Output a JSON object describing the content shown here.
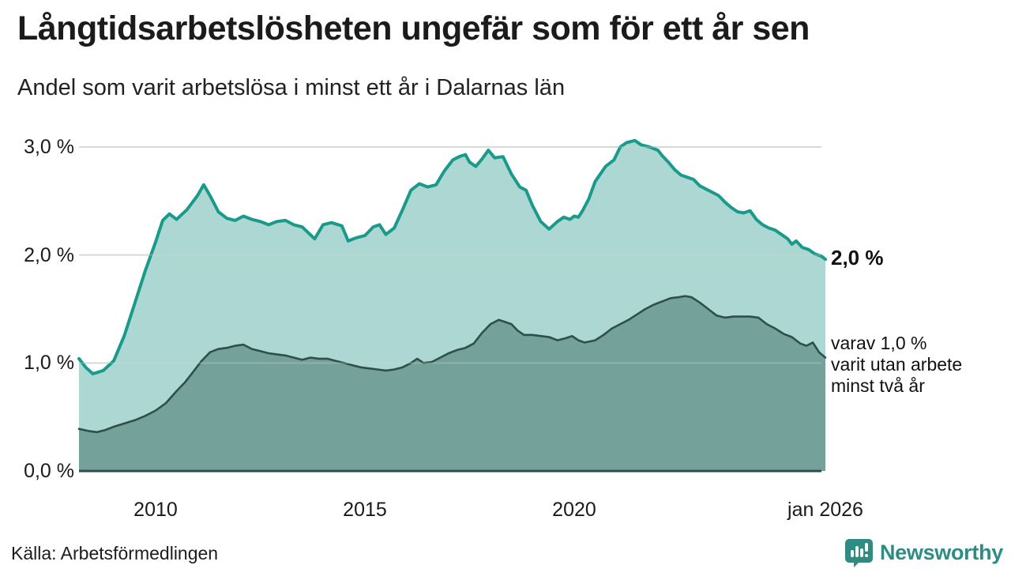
{
  "header": {
    "title": "Långtidsarbetslösheten ungefär som för ett år sen",
    "subtitle": "Andel som varit arbetslösa i minst ett år i Dalarnas län"
  },
  "annotations": {
    "total_end_label": "2,0 %",
    "secondary_label_lines": [
      "varav 1,0 %",
      "varit utan arbete",
      "minst två år"
    ]
  },
  "source": {
    "label": "Källa: Arbetsförmedlingen"
  },
  "branding": {
    "name": "Newsworthy",
    "icon": "bar-chart-pin-icon",
    "color": "#2e8c82"
  },
  "colors": {
    "total_line": "#1a9a8a",
    "total_fill": "#a9d5d0",
    "secondary_line": "#2e4f4a",
    "secondary_fill": "#6f9c95",
    "gridline": "#d9d9d9",
    "baseline": "#2e4f4a",
    "text": "#1a1a1a"
  },
  "chart_data": {
    "type": "area",
    "title": "Långtidsarbetslösheten ungefär som för ett år sen",
    "subtitle": "Andel som varit arbetslösa i minst ett år i Dalarnas län",
    "xlabel": "",
    "ylabel": "",
    "unit": "%",
    "xlim": [
      2008.17,
      2026.0
    ],
    "ylim": [
      0,
      3.2
    ],
    "grid": "horizontal",
    "legend_position": "right-edge-labels",
    "y_ticks": [
      {
        "v": 0,
        "label": "0,0 %"
      },
      {
        "v": 1,
        "label": "1,0 %"
      },
      {
        "v": 2,
        "label": "2,0 %"
      },
      {
        "v": 3,
        "label": "3,0 %"
      }
    ],
    "x_ticks": [
      {
        "x": 2010,
        "label": "2010"
      },
      {
        "x": 2015,
        "label": "2015"
      },
      {
        "x": 2020,
        "label": "2020"
      },
      {
        "x": 2026.0,
        "label": "jan 2026"
      }
    ],
    "series": [
      {
        "name": "Andel arbetslösa minst ett år",
        "end_value_label": "2,0 %",
        "line_color": "#1a9a8a",
        "fill_color": "#a9d5d0",
        "points": [
          [
            2008.17,
            1.04
          ],
          [
            2008.33,
            0.96
          ],
          [
            2008.5,
            0.9
          ],
          [
            2008.75,
            0.93
          ],
          [
            2009.0,
            1.02
          ],
          [
            2009.25,
            1.25
          ],
          [
            2009.5,
            1.55
          ],
          [
            2009.75,
            1.85
          ],
          [
            2010.0,
            2.12
          ],
          [
            2010.17,
            2.32
          ],
          [
            2010.33,
            2.38
          ],
          [
            2010.5,
            2.33
          ],
          [
            2010.75,
            2.42
          ],
          [
            2011.0,
            2.55
          ],
          [
            2011.15,
            2.65
          ],
          [
            2011.3,
            2.55
          ],
          [
            2011.5,
            2.4
          ],
          [
            2011.7,
            2.34
          ],
          [
            2011.9,
            2.32
          ],
          [
            2012.1,
            2.36
          ],
          [
            2012.3,
            2.33
          ],
          [
            2012.5,
            2.31
          ],
          [
            2012.7,
            2.28
          ],
          [
            2012.9,
            2.31
          ],
          [
            2013.1,
            2.32
          ],
          [
            2013.3,
            2.28
          ],
          [
            2013.5,
            2.26
          ],
          [
            2013.8,
            2.15
          ],
          [
            2014.0,
            2.28
          ],
          [
            2014.2,
            2.3
          ],
          [
            2014.45,
            2.27
          ],
          [
            2014.6,
            2.13
          ],
          [
            2014.8,
            2.16
          ],
          [
            2015.0,
            2.18
          ],
          [
            2015.2,
            2.26
          ],
          [
            2015.35,
            2.28
          ],
          [
            2015.5,
            2.19
          ],
          [
            2015.7,
            2.25
          ],
          [
            2015.9,
            2.42
          ],
          [
            2016.1,
            2.6
          ],
          [
            2016.3,
            2.66
          ],
          [
            2016.5,
            2.63
          ],
          [
            2016.7,
            2.65
          ],
          [
            2016.9,
            2.78
          ],
          [
            2017.1,
            2.88
          ],
          [
            2017.25,
            2.91
          ],
          [
            2017.4,
            2.93
          ],
          [
            2017.5,
            2.86
          ],
          [
            2017.65,
            2.82
          ],
          [
            2017.8,
            2.89
          ],
          [
            2017.95,
            2.97
          ],
          [
            2018.1,
            2.9
          ],
          [
            2018.3,
            2.91
          ],
          [
            2018.5,
            2.75
          ],
          [
            2018.7,
            2.63
          ],
          [
            2018.85,
            2.6
          ],
          [
            2019.0,
            2.46
          ],
          [
            2019.2,
            2.31
          ],
          [
            2019.4,
            2.24
          ],
          [
            2019.6,
            2.31
          ],
          [
            2019.75,
            2.35
          ],
          [
            2019.9,
            2.33
          ],
          [
            2020.0,
            2.36
          ],
          [
            2020.1,
            2.35
          ],
          [
            2020.2,
            2.41
          ],
          [
            2020.35,
            2.52
          ],
          [
            2020.5,
            2.68
          ],
          [
            2020.75,
            2.82
          ],
          [
            2020.95,
            2.88
          ],
          [
            2021.1,
            3.0
          ],
          [
            2021.25,
            3.04
          ],
          [
            2021.45,
            3.06
          ],
          [
            2021.6,
            3.02
          ],
          [
            2021.8,
            3.0
          ],
          [
            2022.0,
            2.97
          ],
          [
            2022.1,
            2.92
          ],
          [
            2022.25,
            2.86
          ],
          [
            2022.4,
            2.79
          ],
          [
            2022.55,
            2.74
          ],
          [
            2022.7,
            2.72
          ],
          [
            2022.85,
            2.7
          ],
          [
            2023.0,
            2.64
          ],
          [
            2023.15,
            2.61
          ],
          [
            2023.3,
            2.58
          ],
          [
            2023.45,
            2.55
          ],
          [
            2023.6,
            2.49
          ],
          [
            2023.75,
            2.44
          ],
          [
            2023.9,
            2.4
          ],
          [
            2024.05,
            2.39
          ],
          [
            2024.2,
            2.41
          ],
          [
            2024.35,
            2.33
          ],
          [
            2024.5,
            2.28
          ],
          [
            2024.65,
            2.25
          ],
          [
            2024.8,
            2.23
          ],
          [
            2024.95,
            2.19
          ],
          [
            2025.1,
            2.15
          ],
          [
            2025.2,
            2.1
          ],
          [
            2025.3,
            2.13
          ],
          [
            2025.45,
            2.07
          ],
          [
            2025.6,
            2.05
          ],
          [
            2025.75,
            2.01
          ],
          [
            2025.9,
            1.99
          ],
          [
            2026.0,
            1.96
          ]
        ]
      },
      {
        "name": "varav utan arbete minst två år",
        "end_value_label": "varav 1,0 % varit utan arbete minst två år",
        "line_color": "#2e4f4a",
        "fill_color": "#6f9c95",
        "points": [
          [
            2008.17,
            0.39
          ],
          [
            2008.4,
            0.37
          ],
          [
            2008.6,
            0.36
          ],
          [
            2008.8,
            0.38
          ],
          [
            2009.0,
            0.41
          ],
          [
            2009.25,
            0.44
          ],
          [
            2009.5,
            0.47
          ],
          [
            2009.75,
            0.51
          ],
          [
            2010.0,
            0.56
          ],
          [
            2010.25,
            0.63
          ],
          [
            2010.5,
            0.74
          ],
          [
            2010.7,
            0.82
          ],
          [
            2010.9,
            0.92
          ],
          [
            2011.1,
            1.02
          ],
          [
            2011.3,
            1.1
          ],
          [
            2011.5,
            1.13
          ],
          [
            2011.7,
            1.14
          ],
          [
            2011.9,
            1.16
          ],
          [
            2012.1,
            1.17
          ],
          [
            2012.3,
            1.13
          ],
          [
            2012.5,
            1.11
          ],
          [
            2012.7,
            1.09
          ],
          [
            2012.9,
            1.08
          ],
          [
            2013.1,
            1.07
          ],
          [
            2013.3,
            1.05
          ],
          [
            2013.5,
            1.03
          ],
          [
            2013.7,
            1.05
          ],
          [
            2013.9,
            1.04
          ],
          [
            2014.1,
            1.04
          ],
          [
            2014.3,
            1.02
          ],
          [
            2014.5,
            1.0
          ],
          [
            2014.7,
            0.98
          ],
          [
            2014.9,
            0.96
          ],
          [
            2015.1,
            0.95
          ],
          [
            2015.3,
            0.94
          ],
          [
            2015.5,
            0.93
          ],
          [
            2015.7,
            0.94
          ],
          [
            2015.9,
            0.96
          ],
          [
            2016.1,
            1.0
          ],
          [
            2016.25,
            1.04
          ],
          [
            2016.4,
            1.0
          ],
          [
            2016.6,
            1.01
          ],
          [
            2016.8,
            1.05
          ],
          [
            2017.0,
            1.09
          ],
          [
            2017.2,
            1.12
          ],
          [
            2017.4,
            1.14
          ],
          [
            2017.6,
            1.18
          ],
          [
            2017.8,
            1.28
          ],
          [
            2018.0,
            1.36
          ],
          [
            2018.2,
            1.4
          ],
          [
            2018.35,
            1.38
          ],
          [
            2018.5,
            1.36
          ],
          [
            2018.65,
            1.3
          ],
          [
            2018.8,
            1.26
          ],
          [
            2019.0,
            1.26
          ],
          [
            2019.2,
            1.25
          ],
          [
            2019.4,
            1.24
          ],
          [
            2019.6,
            1.21
          ],
          [
            2019.8,
            1.23
          ],
          [
            2019.95,
            1.25
          ],
          [
            2020.1,
            1.21
          ],
          [
            2020.25,
            1.19
          ],
          [
            2020.5,
            1.21
          ],
          [
            2020.7,
            1.26
          ],
          [
            2020.9,
            1.32
          ],
          [
            2021.1,
            1.36
          ],
          [
            2021.3,
            1.4
          ],
          [
            2021.5,
            1.45
          ],
          [
            2021.7,
            1.5
          ],
          [
            2021.9,
            1.54
          ],
          [
            2022.1,
            1.57
          ],
          [
            2022.3,
            1.6
          ],
          [
            2022.5,
            1.61
          ],
          [
            2022.65,
            1.62
          ],
          [
            2022.8,
            1.61
          ],
          [
            2023.0,
            1.56
          ],
          [
            2023.2,
            1.5
          ],
          [
            2023.4,
            1.44
          ],
          [
            2023.6,
            1.42
          ],
          [
            2023.8,
            1.43
          ],
          [
            2024.0,
            1.43
          ],
          [
            2024.2,
            1.43
          ],
          [
            2024.4,
            1.42
          ],
          [
            2024.6,
            1.36
          ],
          [
            2024.8,
            1.32
          ],
          [
            2025.0,
            1.27
          ],
          [
            2025.2,
            1.24
          ],
          [
            2025.4,
            1.18
          ],
          [
            2025.55,
            1.16
          ],
          [
            2025.7,
            1.19
          ],
          [
            2025.85,
            1.1
          ],
          [
            2026.0,
            1.05
          ]
        ]
      }
    ]
  }
}
